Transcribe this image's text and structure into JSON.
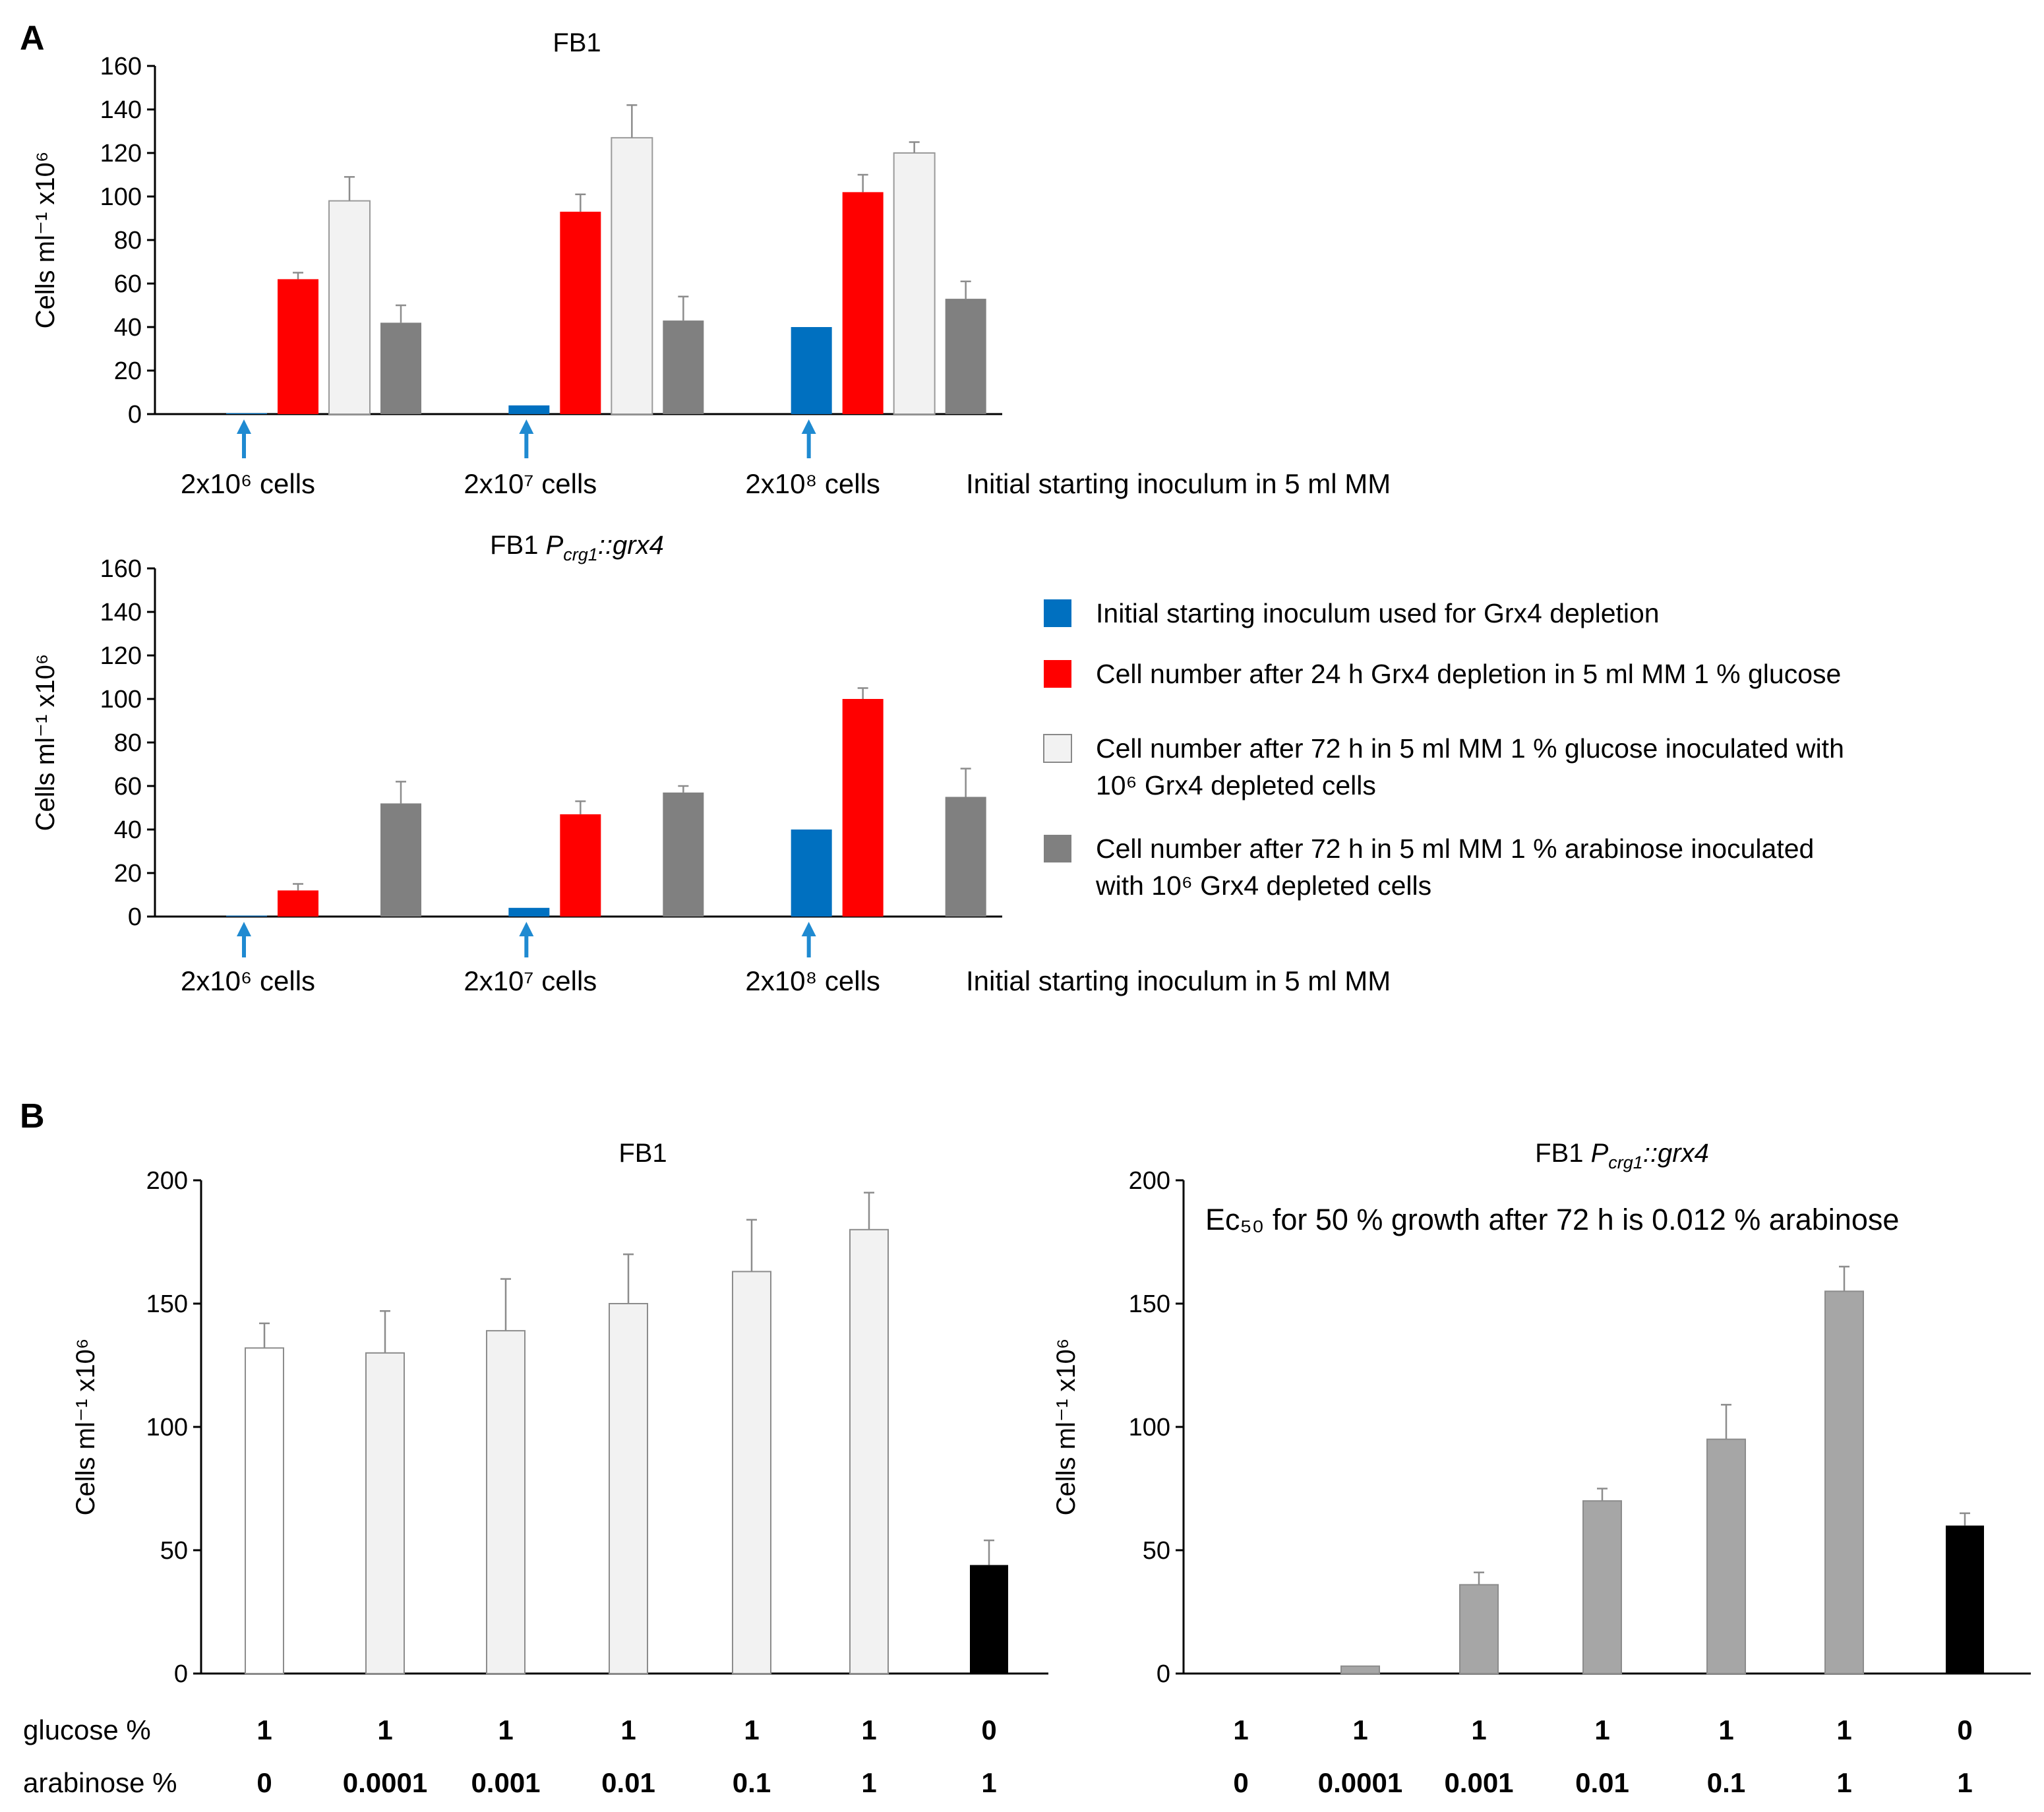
{
  "figure": {
    "panel_a_label": "A",
    "panel_b_label": "B",
    "colors": {
      "inoculum": "#0070c0",
      "after24h": "#ff0000",
      "glucose72h": "#f2f2f2",
      "arabinose72h": "#808080",
      "b_white": "#ffffff",
      "b_grey_light": "#f2f2f2",
      "b_grey_mid": "#a6a6a6",
      "b_black": "#000000",
      "arrow": "#1f8ad1"
    },
    "arrow_icon": "up-arrow-icon",
    "inoculum_note": "Initial starting inoculum in 5 ml MM",
    "legend": [
      {
        "key": "inoculum",
        "lines": [
          "Initial starting inoculum used for Grx4 depletion"
        ]
      },
      {
        "key": "after24h",
        "lines": [
          "Cell number after 24 h Grx4 depletion in 5 ml MM 1 % glucose"
        ]
      },
      {
        "key": "glucose72h",
        "lines": [
          "Cell number after 72 h in 5 ml MM 1 % glucose inoculated with",
          "10⁶ Grx4 depleted cells"
        ]
      },
      {
        "key": "arabinose72h",
        "lines": [
          "Cell number after 72 h in 5 ml MM 1 % arabinose inoculated",
          "with 10⁶ Grx4 depleted cells"
        ]
      }
    ],
    "conditions": {
      "glucose_label": "glucose %",
      "arabinose_label": "arabinose %",
      "glucose": [
        "1",
        "1",
        "1",
        "1",
        "1",
        "1",
        "0"
      ],
      "arabinose": [
        "0",
        "0.0001",
        "0.001",
        "0.01",
        "0.1",
        "1",
        "1"
      ]
    },
    "ec50_note": "Ec₅₀ for 50 % growth after 72 h is 0.012 % arabinose"
  },
  "chart_data": [
    {
      "id": "a_top",
      "type": "bar",
      "title": "FB1",
      "ylabel": "Cells ml⁻¹ x10⁶",
      "ylim": [
        0,
        160
      ],
      "yticks": [
        0,
        20,
        40,
        60,
        80,
        100,
        120,
        140,
        160
      ],
      "categories": [
        "2x10⁶ cells",
        "2x10⁷ cells",
        "2x10⁸ cells"
      ],
      "series": [
        {
          "key": "inoculum",
          "name": "Initial starting inoculum used for Grx4 depletion",
          "values": [
            0.4,
            4,
            40
          ],
          "errors": [
            0,
            0,
            0
          ]
        },
        {
          "key": "after24h",
          "name": "Cell number after 24 h Grx4 depletion in 5 ml MM 1 % glucose",
          "values": [
            62,
            93,
            102
          ],
          "errors": [
            3,
            8,
            8
          ]
        },
        {
          "key": "glucose72h",
          "name": "Cell number after 72 h in 5 ml MM 1 % glucose inoculated with 10⁶ Grx4 depleted cells",
          "values": [
            98,
            127,
            120
          ],
          "errors": [
            11,
            15,
            5
          ]
        },
        {
          "key": "arabinose72h",
          "name": "Cell number after 72 h in 5 ml MM 1 % arabinose inoculated with 10⁶ Grx4 depleted cells",
          "values": [
            42,
            43,
            53
          ],
          "errors": [
            8,
            11,
            8
          ]
        }
      ]
    },
    {
      "id": "a_bottom",
      "type": "bar",
      "title": "FB1 ",
      "title_italic": "P",
      "title_sub": "crg1",
      "title_rest": "::grx4",
      "ylabel": "Cells ml⁻¹ x10⁶",
      "ylim": [
        0,
        160
      ],
      "yticks": [
        0,
        20,
        40,
        60,
        80,
        100,
        120,
        140,
        160
      ],
      "categories": [
        "2x10⁶ cells",
        "2x10⁷ cells",
        "2x10⁸ cells"
      ],
      "series": [
        {
          "key": "inoculum",
          "name": "Initial starting inoculum used for Grx4 depletion",
          "values": [
            0.4,
            4,
            40
          ],
          "errors": [
            0,
            0,
            0
          ]
        },
        {
          "key": "after24h",
          "name": "Cell number after 24 h Grx4 depletion in 5 ml MM 1 % glucose",
          "values": [
            12,
            47,
            100
          ],
          "errors": [
            3,
            6,
            5
          ]
        },
        {
          "key": "glucose72h",
          "name": "Cell number after 72 h in 5 ml MM 1 % glucose inoculated with 10⁶ Grx4 depleted cells",
          "values": [
            0,
            0,
            0
          ],
          "errors": [
            0,
            0,
            0
          ]
        },
        {
          "key": "arabinose72h",
          "name": "Cell number after 72 h in 5 ml MM 1 % arabinose inoculated with 10⁶ Grx4 depleted cells",
          "values": [
            52,
            57,
            55
          ],
          "errors": [
            10,
            3,
            13
          ]
        }
      ]
    },
    {
      "id": "b_left",
      "type": "bar",
      "title": "FB1",
      "ylabel": "Cells ml⁻¹ x10⁶",
      "ylim": [
        0,
        200
      ],
      "yticks": [
        0,
        50,
        100,
        150,
        200
      ],
      "categories": [
        "1 / 0",
        "1 / 0.0001",
        "1 / 0.001",
        "1 / 0.01",
        "1 / 0.1",
        "1 / 1",
        "0 / 1"
      ],
      "values": [
        132,
        130,
        139,
        150,
        163,
        180,
        44
      ],
      "errors": [
        10,
        17,
        21,
        20,
        21,
        15,
        10
      ],
      "fills": [
        "b_white",
        "b_grey_light",
        "b_grey_light",
        "b_grey_light",
        "b_grey_light",
        "b_grey_light",
        "b_black"
      ]
    },
    {
      "id": "b_right",
      "type": "bar",
      "title": "FB1 ",
      "title_italic": "P",
      "title_sub": "crg1",
      "title_rest": "::grx4",
      "ylabel": "Cells ml⁻¹ x10⁶",
      "ylim": [
        0,
        200
      ],
      "yticks": [
        0,
        50,
        100,
        150,
        200
      ],
      "categories": [
        "1 / 0",
        "1 / 0.0001",
        "1 / 0.001",
        "1 / 0.01",
        "1 / 0.1",
        "1 / 1",
        "0 / 1"
      ],
      "values": [
        0,
        3,
        36,
        70,
        95,
        155,
        60
      ],
      "errors": [
        0,
        0,
        5,
        5,
        14,
        10,
        5
      ],
      "fills": [
        "b_grey_mid",
        "b_grey_mid",
        "b_grey_mid",
        "b_grey_mid",
        "b_grey_mid",
        "b_grey_mid",
        "b_black"
      ]
    }
  ]
}
